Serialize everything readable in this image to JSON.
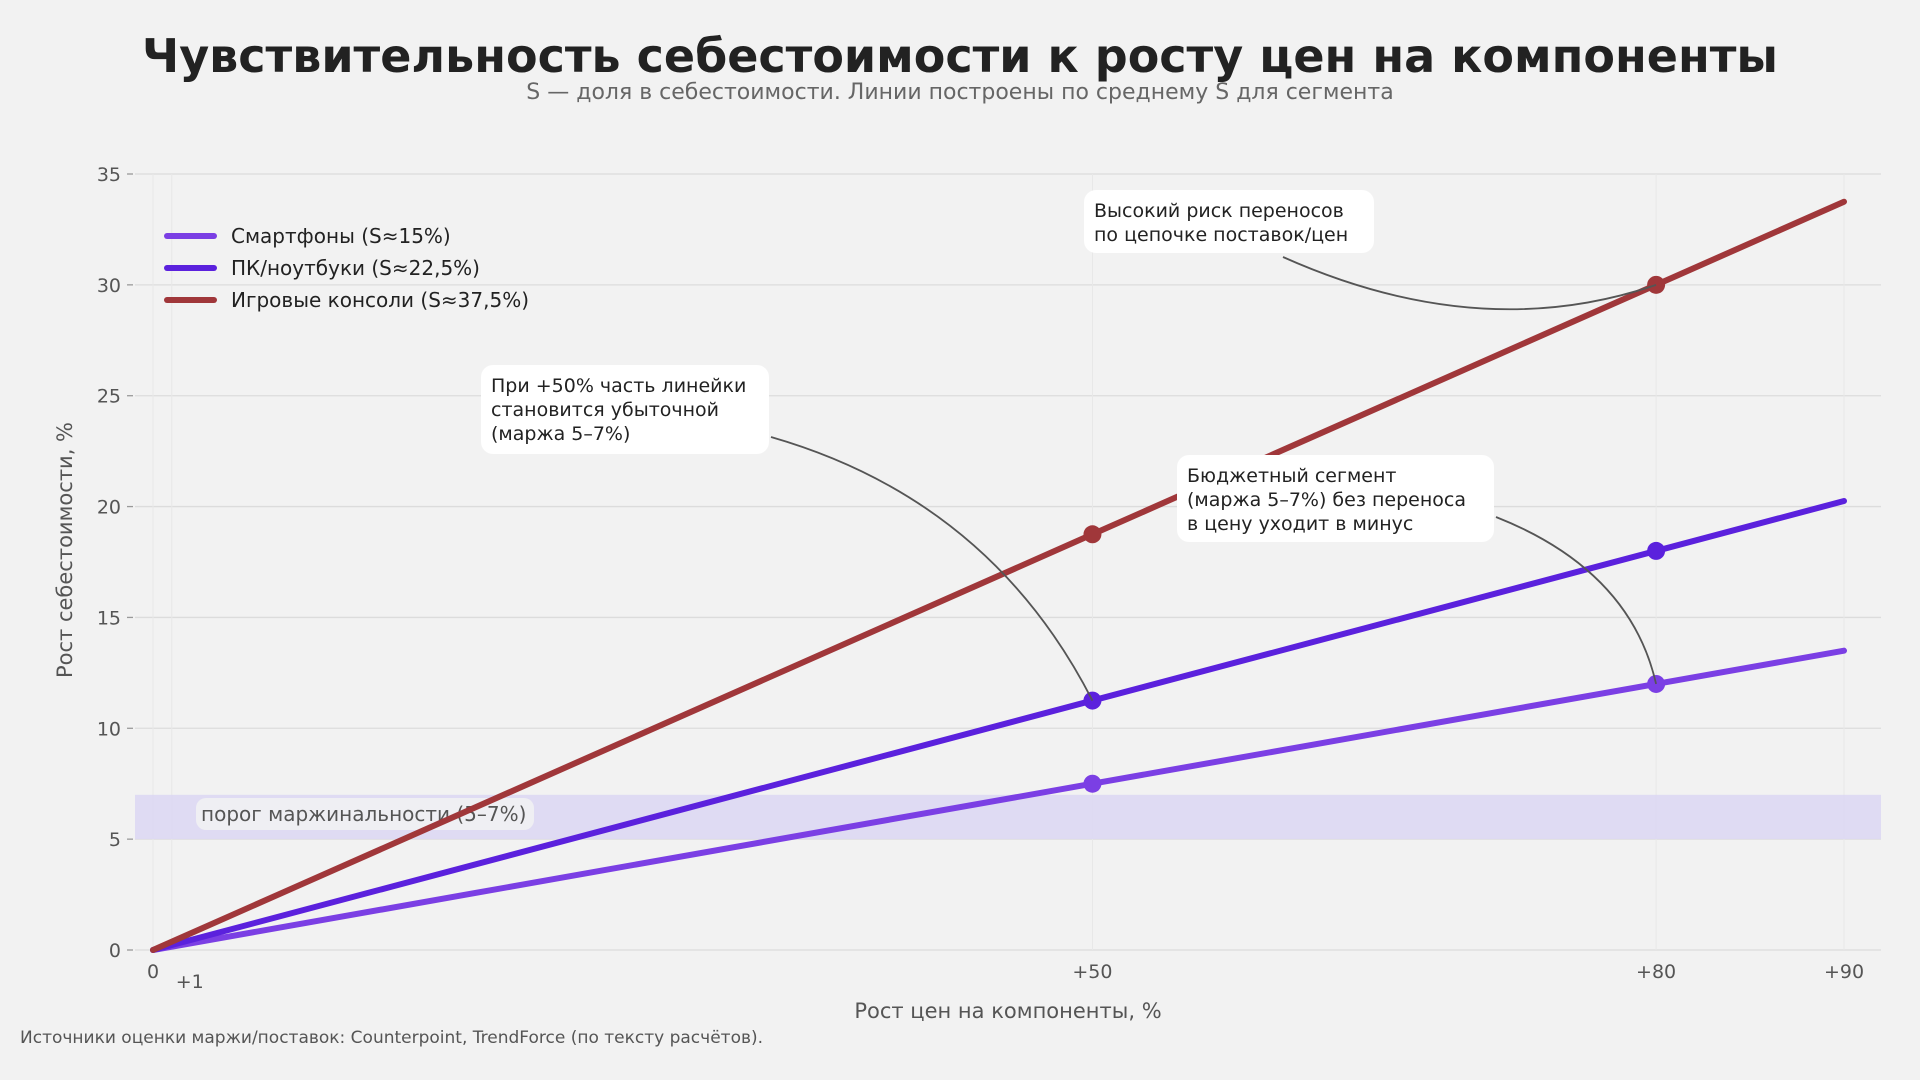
{
  "chart_data": {
    "type": "line",
    "title": "Чувствительность себестоимости к росту цен на компоненты",
    "subtitle": "S — доля в себестоимости. Линии построены по среднему S для сегмента",
    "xlabel": "Рост цен на компоненты, %",
    "ylabel": "Рост себестоимости, %",
    "xlim": [
      0,
      90
    ],
    "ylim": [
      0,
      35
    ],
    "x_ticks": [
      {
        "value": 0,
        "label": "0"
      },
      {
        "value": 1,
        "label": "+1"
      },
      {
        "value": 50,
        "label": "+50"
      },
      {
        "value": 80,
        "label": "+80"
      },
      {
        "value": 90,
        "label": "+90"
      }
    ],
    "y_ticks": [
      0,
      5,
      10,
      15,
      20,
      25,
      30,
      35
    ],
    "grid": "horizontal",
    "legend_position": "top-left",
    "series": [
      {
        "name": "Смартфоны (S≈15%)",
        "color": "#7b3fe4",
        "x": [
          0,
          50,
          80,
          90
        ],
        "y": [
          0,
          7.5,
          12,
          13.5
        ],
        "markers_at": [
          50,
          80
        ]
      },
      {
        "name": "ПК/ноутбуки (S≈22,5%)",
        "color": "#5b21dd",
        "x": [
          0,
          50,
          80,
          90
        ],
        "y": [
          0,
          11.25,
          18,
          20.25
        ],
        "markers_at": [
          50,
          80
        ]
      },
      {
        "name": "Игровые консоли (S≈37,5%)",
        "color": "#a0373a",
        "x": [
          0,
          50,
          80,
          90
        ],
        "y": [
          0,
          18.75,
          30,
          33.75
        ],
        "markers_at": [
          50,
          80
        ]
      }
    ],
    "band": {
      "y_from": 5,
      "y_to": 7,
      "label": "порог маржинальности (5–7%)",
      "color": "#ddd8f3"
    },
    "annotations": [
      {
        "lines": [
          "Высокий риск переносов",
          "по цепочке поставок/цен"
        ],
        "target": {
          "x": 80,
          "y": 30
        }
      },
      {
        "lines": [
          "При +50% часть линейки",
          "становится убыточной",
          "(маржа 5–7%)"
        ],
        "target": {
          "x": 50,
          "y": 11.25
        }
      },
      {
        "lines": [
          "Бюджетный сегмент",
          "(маржа 5–7%) без переноса",
          "в цену уходит в минус"
        ],
        "target": {
          "x": 80,
          "y": 12
        }
      }
    ],
    "footnote": "Источники оценки маржи/поставок: Counterpoint, TrendForce (по тексту расчётов)."
  }
}
